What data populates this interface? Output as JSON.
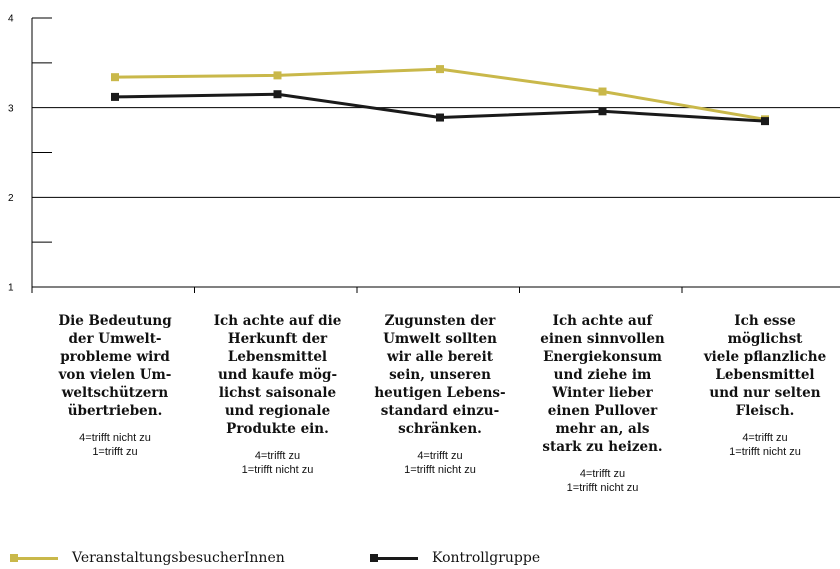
{
  "chart_data": {
    "type": "line",
    "ylim": [
      1,
      4
    ],
    "y_ticks": [
      "1",
      "2",
      "3",
      "4"
    ],
    "categories": [
      "Die Bedeutung\nder Umwelt-\nprobleme wird\nvon vielen Um-\nweltschützern\nübertrieben.",
      "Ich achte auf die\nHerkunft der\nLebensmittel\nund kaufe mög-\nlichst saisonale\nund regionale\nProdukte ein.",
      "Zugunsten der\nUmwelt sollten\nwir alle bereit\nsein, unseren\nheutigen Lebens-\nstandard einzu-\nschränken.",
      "Ich achte auf\neinen sinnvollen\nEnergiekonsum\nund ziehe im\nWinter lieber\neinen Pullover\nmehr an, als\nstark zu heizen.",
      "Ich esse\nmöglichst\nviele pflanzliche\nLebensmittel\nund nur selten\nFleisch."
    ],
    "scale_notes": [
      "4=trifft nicht zu\n1=trifft zu",
      "4=trifft zu\n1=trifft nicht zu",
      "4=trifft zu\n1=trifft nicht zu",
      "4=trifft zu\n1=trifft nicht zu",
      "4=trifft zu\n1=trifft nicht zu"
    ],
    "series": [
      {
        "name": "VeranstaltungsbesucherInnen",
        "color": "#c9b84a",
        "values": [
          3.34,
          3.36,
          3.43,
          3.18,
          2.87
        ]
      },
      {
        "name": "Kontrollgruppe",
        "color": "#1a1a1a",
        "values": [
          3.12,
          3.15,
          2.89,
          2.96,
          2.85
        ]
      }
    ],
    "grid": true,
    "legend_position": "bottom-left"
  }
}
